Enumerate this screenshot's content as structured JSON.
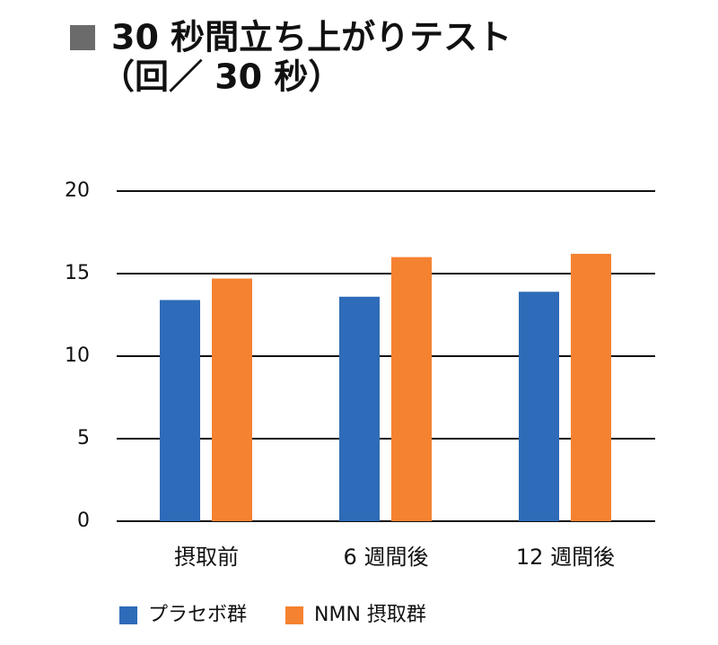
{
  "chart_data": {
    "type": "bar",
    "title": "30 秒間立ち上がりテスト",
    "subtitle": "（回／ 30 秒）",
    "categories": [
      "摂取前",
      "6 週間後",
      "12 週間後"
    ],
    "series": [
      {
        "name": "プラセボ群",
        "color": "#2e6bb8",
        "values": [
          13.4,
          13.6,
          13.9
        ]
      },
      {
        "name": "NMN 摂取群",
        "color": "#f58231",
        "values": [
          14.7,
          16.0,
          16.2
        ]
      }
    ],
    "ylim": [
      0,
      20
    ],
    "yticks": [
      0,
      5,
      10,
      15,
      20
    ],
    "grid": true
  }
}
